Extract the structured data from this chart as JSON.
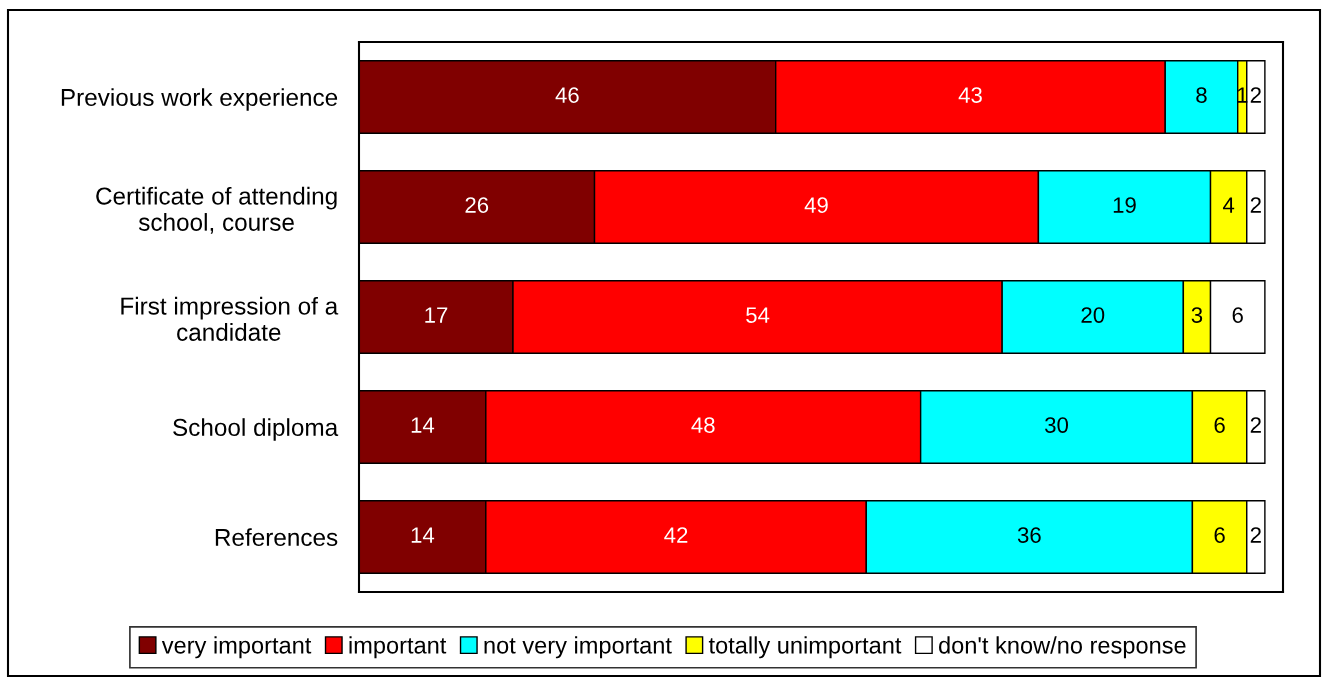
{
  "chart_data": {
    "type": "bar",
    "orientation": "horizontal",
    "stacked": true,
    "data_labels": true,
    "legend": "bottom",
    "tick_labels": "y",
    "grid": false,
    "xlim": [
      0,
      102
    ],
    "categories": [
      "Previous work experience",
      "Certificate of attending\nschool, course",
      "First impression of a\ncandidate",
      "School diploma",
      "References"
    ],
    "series": [
      {
        "name": "very important",
        "color": "#800000",
        "values": [
          46,
          26,
          17,
          14,
          14
        ]
      },
      {
        "name": "important",
        "color": "#ff0000",
        "values": [
          43,
          49,
          54,
          48,
          42
        ]
      },
      {
        "name": "not very important",
        "color": "#00ffff",
        "values": [
          8,
          19,
          20,
          30,
          36
        ]
      },
      {
        "name": "totally unimportant",
        "color": "#ffff00",
        "values": [
          1,
          4,
          3,
          6,
          6
        ]
      },
      {
        "name": "don't know/no response",
        "color": "#ffffff",
        "values": [
          2,
          2,
          6,
          2,
          2
        ]
      }
    ]
  }
}
